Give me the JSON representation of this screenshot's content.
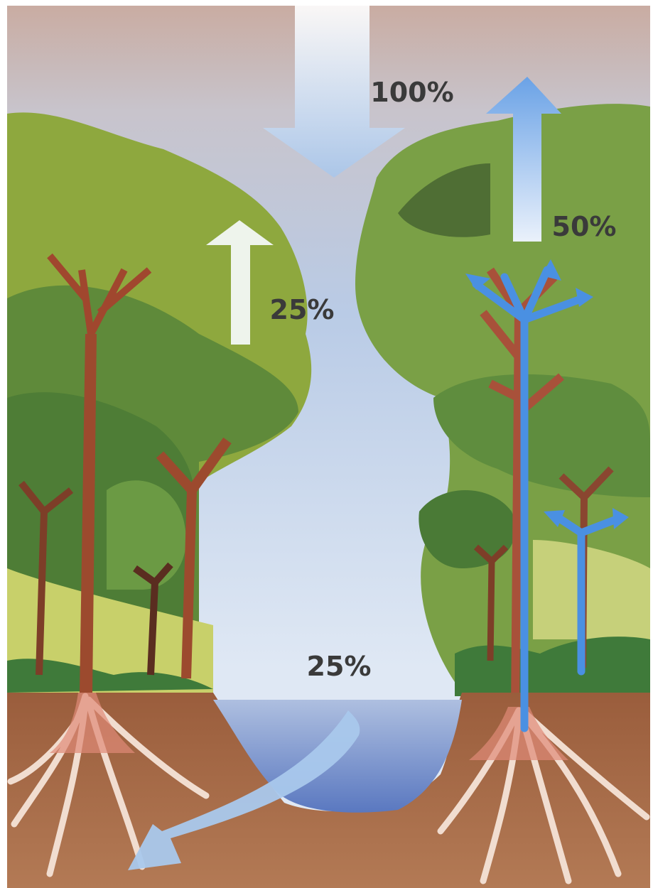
{
  "labels": [
    {
      "text": "100%"
    },
    {
      "text": "50%"
    },
    {
      "text": "25%"
    },
    {
      "text": "25%"
    }
  ]
}
